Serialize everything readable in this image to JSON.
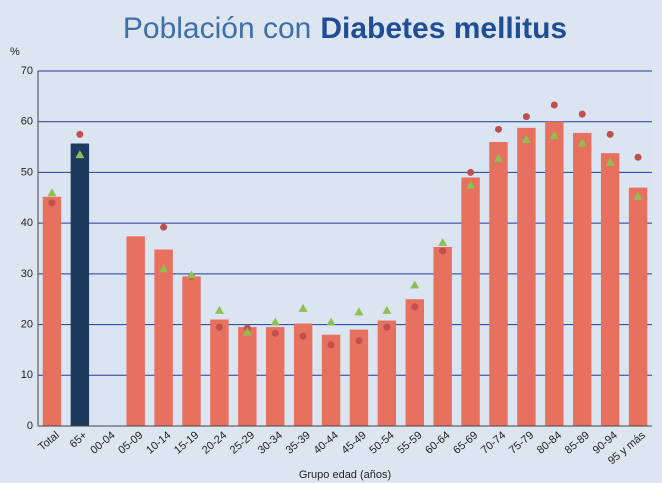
{
  "chart_data": {
    "type": "bar",
    "title": {
      "text": "Población con",
      "emphasis": "Diabetes mellitus"
    },
    "y_label": "%",
    "x_label": "Grupo edad (años)",
    "categories": [
      "Total",
      "65+",
      "00-04",
      "05-09",
      "10-14",
      "15-19",
      "20-24",
      "25-29",
      "30-34",
      "35-39",
      "40-44",
      "45-49",
      "50-54",
      "55-59",
      "60-64",
      "65-69",
      "70-74",
      "75-79",
      "80-84",
      "85-89",
      "90-94",
      "95 y más"
    ],
    "values": [
      45.2,
      55.7,
      null,
      37.4,
      34.8,
      29.5,
      21,
      19.5,
      19.5,
      20.2,
      18,
      19,
      20.8,
      25,
      35.3,
      49,
      56,
      58.8,
      60,
      57.8,
      53.8,
      47
    ],
    "colors": [
      "#e8705f",
      "#1f3a5f",
      "#e8705f",
      "#e8705f",
      "#e8705f",
      "#e8705f",
      "#e8705f",
      "#e8705f",
      "#e8705f",
      "#e8705f",
      "#e8705f",
      "#e8705f",
      "#e8705f",
      "#e8705f",
      "#e8705f",
      "#e8705f",
      "#e8705f",
      "#e8705f",
      "#e8705f",
      "#e8705f",
      "#e8705f",
      "#e8705f"
    ],
    "markers": [
      {
        "shape": "circle",
        "color": "#c0504d",
        "values": [
          44,
          57.5,
          null,
          null,
          39.2,
          29.5,
          19.5,
          19.3,
          18.3,
          17.7,
          16,
          16.8,
          19.5,
          23.5,
          34.5,
          50,
          58.5,
          61,
          63.3,
          61.5,
          57.5,
          53
        ]
      },
      {
        "shape": "triangle",
        "color": "#8cc152",
        "values": [
          46,
          53.5,
          null,
          null,
          31,
          29.8,
          22.8,
          18.5,
          20.5,
          23.2,
          20.5,
          22.5,
          22.8,
          27.8,
          36.2,
          47.5,
          52.8,
          56.5,
          57.3,
          55.8,
          52,
          45.3
        ]
      }
    ],
    "ylim": [
      0,
      70
    ],
    "yticks": [
      0,
      10,
      20,
      30,
      40,
      50,
      60,
      70
    ],
    "grid": true,
    "grid_color": "#1f3c99"
  }
}
